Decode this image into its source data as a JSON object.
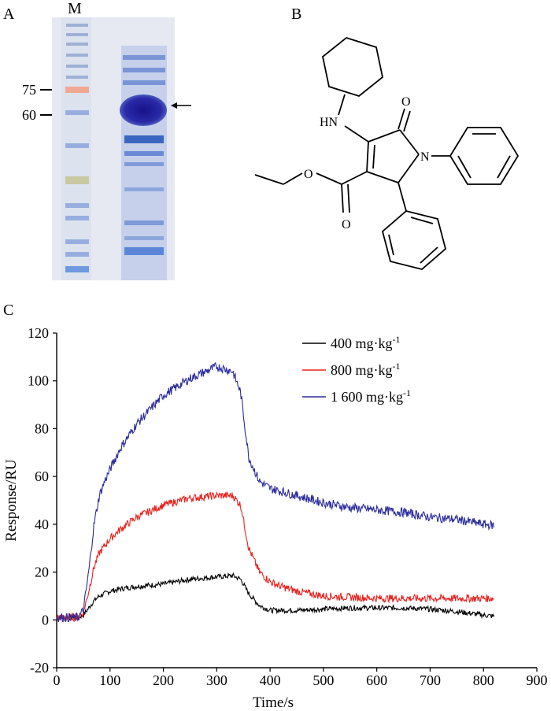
{
  "panels": {
    "a_label": "A",
    "b_label": "B",
    "c_label": "C"
  },
  "gel": {
    "lane_label": "M",
    "markers": [
      "75",
      "60"
    ]
  },
  "structure": {
    "atom_labels": [
      "HN",
      "O",
      "N",
      "O",
      "O"
    ]
  },
  "chart_data": {
    "type": "line",
    "xlabel": "Time/s",
    "ylabel": "Response/RU",
    "xlim": [
      0,
      900
    ],
    "ylim": [
      -20,
      120
    ],
    "xticks": [
      0,
      100,
      200,
      300,
      400,
      500,
      600,
      700,
      800,
      900
    ],
    "yticks": [
      -20,
      0,
      20,
      40,
      60,
      80,
      100,
      120
    ],
    "grid": false,
    "legend_position": "top-right",
    "series": [
      {
        "name": "400 mg·kg-1",
        "color": "#000000",
        "x": [
          0,
          20,
          40,
          50,
          60,
          70,
          80,
          90,
          100,
          120,
          150,
          200,
          250,
          300,
          330,
          345,
          360,
          380,
          400,
          450,
          500,
          550,
          600,
          650,
          700,
          750,
          800,
          820
        ],
        "y": [
          1,
          1,
          1,
          2,
          5,
          8,
          10,
          11,
          12,
          13,
          14,
          15,
          17,
          18,
          18.5,
          17,
          11,
          6,
          4,
          4,
          4.5,
          5,
          5,
          5,
          4.5,
          3.5,
          2,
          1.5
        ]
      },
      {
        "name": "800 mg·kg-1",
        "color": "#e8231f",
        "x": [
          0,
          20,
          40,
          50,
          60,
          70,
          80,
          90,
          100,
          120,
          150,
          200,
          250,
          300,
          330,
          345,
          360,
          380,
          400,
          420,
          450,
          500,
          550,
          600,
          650,
          700,
          750,
          800,
          820
        ],
        "y": [
          1,
          1,
          1,
          3,
          12,
          22,
          28,
          31,
          34,
          38,
          43,
          48,
          51,
          52,
          52,
          48,
          30,
          20,
          16,
          14,
          12,
          10,
          9.5,
          9,
          9,
          9,
          9,
          9,
          9
        ]
      },
      {
        "name": "1 600 mg·kg-1",
        "color": "#2b2b9e",
        "x": [
          0,
          20,
          40,
          50,
          60,
          70,
          80,
          90,
          100,
          120,
          150,
          200,
          250,
          300,
          330,
          345,
          360,
          380,
          400,
          450,
          500,
          550,
          600,
          650,
          700,
          750,
          800,
          820
        ],
        "y": [
          1,
          1,
          1,
          4,
          20,
          40,
          52,
          58,
          63,
          72,
          82,
          94,
          101,
          106,
          104,
          95,
          68,
          58,
          55,
          52,
          49,
          47,
          46,
          45,
          43,
          42,
          40,
          39.5
        ]
      }
    ]
  }
}
